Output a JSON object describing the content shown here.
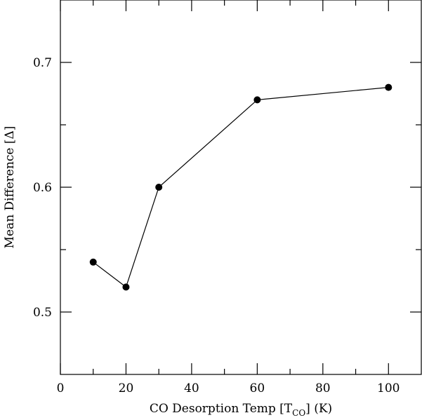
{
  "chart_data": {
    "type": "line",
    "title": "",
    "xlabel_main": "CO Desorption Temp [T",
    "xlabel_sub": "CO",
    "xlabel_tail": "] (K)",
    "ylabel": "Mean Difference [Δ]",
    "xlim": [
      0,
      110
    ],
    "ylim": [
      0.45,
      0.75
    ],
    "xticks_major": [
      0,
      20,
      40,
      60,
      80,
      100
    ],
    "xticks_minor": [
      10,
      30,
      50,
      70,
      90
    ],
    "yticks_major": [
      0.5,
      0.6,
      0.7
    ],
    "yticks_minor": [
      0.55,
      0.65
    ],
    "xtick_labels": [
      "0",
      "20",
      "40",
      "60",
      "80",
      "100"
    ],
    "ytick_labels": [
      "0.5",
      "0.6",
      "0.7"
    ],
    "grid": false,
    "series": [
      {
        "x": [
          10,
          20,
          30,
          60,
          100
        ],
        "y": [
          0.54,
          0.52,
          0.6,
          0.67,
          0.68
        ],
        "marker": "circle",
        "color": "#000000"
      }
    ]
  }
}
